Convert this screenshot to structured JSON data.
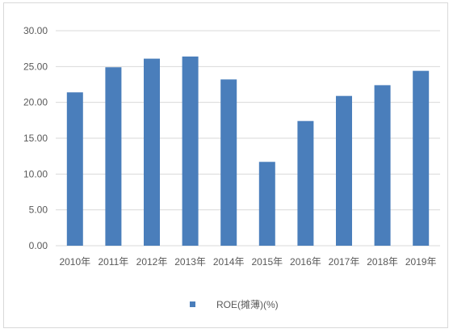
{
  "chart_data": {
    "type": "bar",
    "categories": [
      "2010年",
      "2011年",
      "2012年",
      "2013年",
      "2014年",
      "2015年",
      "2016年",
      "2017年",
      "2018年",
      "2019年"
    ],
    "series": [
      {
        "name": "ROE(摊薄)(%)",
        "values": [
          21.4,
          24.9,
          26.1,
          26.4,
          23.2,
          11.7,
          17.4,
          20.9,
          22.4,
          24.4
        ],
        "color": "#4a7ebb"
      }
    ],
    "y_ticks": [
      "0.00",
      "5.00",
      "10.00",
      "15.00",
      "20.00",
      "25.00",
      "30.00"
    ],
    "ylim": [
      0,
      30
    ],
    "grid": true,
    "gridline_color": "#d9d9d9",
    "legend_position": "bottom",
    "title": "",
    "xlabel": "",
    "ylabel": ""
  }
}
